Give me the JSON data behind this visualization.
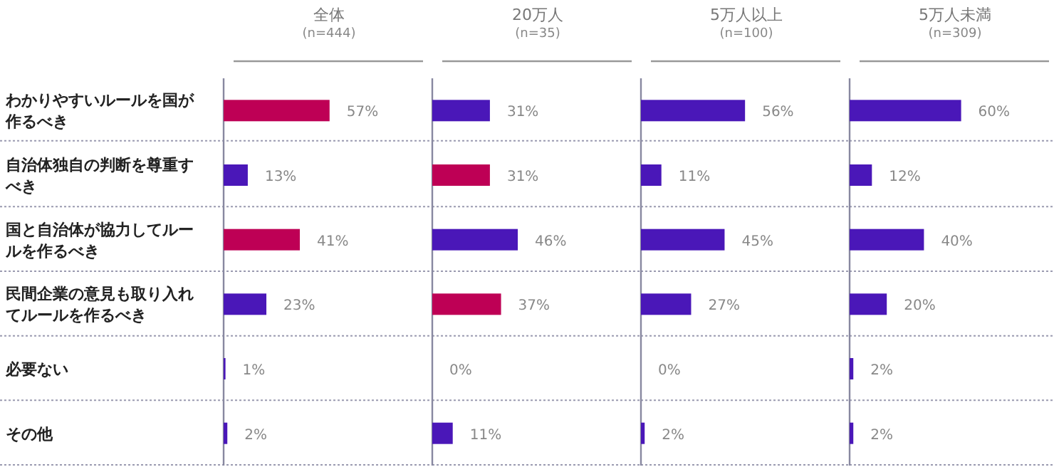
{
  "chart_data": [
    {
      "type": "bar",
      "orientation": "horizontal",
      "title": "全体",
      "subtitle": "(n=444)",
      "tick_labels": "y",
      "categories": [
        "わかりやすいルールを国が作るべき",
        "自治体独自の判断を尊重すべき",
        "国と自治体が協力してルールを作るべき",
        "民間企業の意見も取り入れてルールを作るべき",
        "必要ない",
        "その他"
      ],
      "values": [
        57,
        13,
        41,
        23,
        1,
        2
      ],
      "value_labels": [
        "57%",
        "13%",
        "41%",
        "23%",
        "1%",
        "2%"
      ],
      "colors": [
        "#be0055",
        "#4a17b8",
        "#be0055",
        "#4a17b8",
        "#4a17b8",
        "#4a17b8"
      ]
    },
    {
      "type": "bar",
      "orientation": "horizontal",
      "title": "20万人",
      "subtitle": "(n=35)",
      "tick_labels": false,
      "categories": [
        null,
        null,
        null,
        null,
        null,
        null
      ],
      "values": [
        31,
        31,
        46,
        37,
        0,
        11
      ],
      "value_labels": [
        "31%",
        "31%",
        "46%",
        "37%",
        "0%",
        "11%"
      ],
      "colors": [
        "#4a17b8",
        "#be0055",
        "#4a17b8",
        "#be0055",
        "#4a17b8",
        "#4a17b8"
      ]
    },
    {
      "type": "bar",
      "orientation": "horizontal",
      "title": "5万人以上",
      "subtitle": "(n=100)",
      "tick_labels": false,
      "categories": [
        null,
        null,
        null,
        null,
        null,
        null
      ],
      "values": [
        56,
        11,
        45,
        27,
        0,
        2
      ],
      "value_labels": [
        "56%",
        "11%",
        "45%",
        "27%",
        "0%",
        "2%"
      ],
      "colors": [
        "#4a17b8",
        "#4a17b8",
        "#4a17b8",
        "#4a17b8",
        "#4a17b8",
        "#4a17b8"
      ]
    },
    {
      "type": "bar",
      "orientation": "horizontal",
      "title": "5万人未満",
      "subtitle": "(n=309)",
      "tick_labels": false,
      "categories": [
        null,
        null,
        null,
        null,
        null,
        null
      ],
      "values": [
        60,
        12,
        40,
        20,
        2,
        2
      ],
      "value_labels": [
        "60%",
        "12%",
        "40%",
        "20%",
        "2%",
        "2%"
      ],
      "colors": [
        "#4a17b8",
        "#4a17b8",
        "#4a17b8",
        "#4a17b8",
        "#4a17b8",
        "#4a17b8"
      ]
    }
  ]
}
